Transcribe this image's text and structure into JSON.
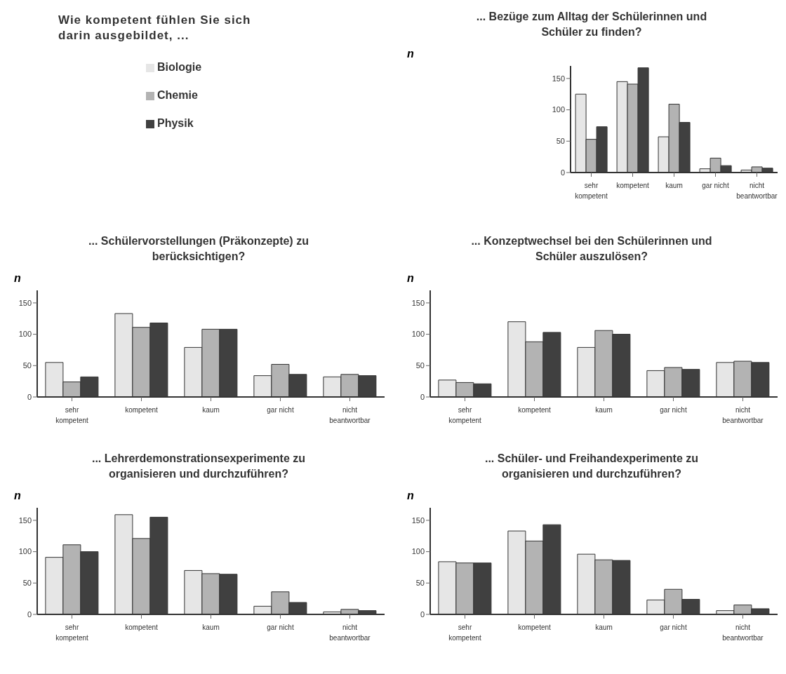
{
  "chart_data": [
    {
      "type": "other",
      "title": "Wie kompetent fühlen Sie sich darin ausgebildet, ..."
    },
    {
      "type": "bar",
      "title": "... Bezüge zum Alltag der Schülerinnen und Schüler zu finden?",
      "ylabel": "n",
      "categories": [
        "sehr kompetent",
        "kompetent",
        "kaum",
        "gar nicht",
        "nicht beantwortbar"
      ],
      "ylim": [
        0,
        170
      ],
      "yticks": [
        0,
        50,
        100,
        150
      ],
      "legend": "left",
      "series": [
        {
          "name": "Biologie",
          "color": "#e6e6e6",
          "values": [
            125,
            145,
            57,
            6,
            4
          ]
        },
        {
          "name": "Chemie",
          "color": "#b3b3b3",
          "values": [
            53,
            141,
            109,
            23,
            9
          ]
        },
        {
          "name": "Physik",
          "color": "#404040",
          "values": [
            73,
            167,
            80,
            11,
            7
          ]
        }
      ]
    },
    {
      "type": "bar",
      "title": "... Schülervorstellungen (Präkonzepte) zu berücksichtigen?",
      "ylabel": "n",
      "categories": [
        "sehr kompetent",
        "kompetent",
        "kaum",
        "gar nicht",
        "nicht beantwortbar"
      ],
      "ylim": [
        0,
        170
      ],
      "yticks": [
        0,
        50,
        100,
        150
      ],
      "series": [
        {
          "color": "#e6e6e6",
          "values": [
            55,
            133,
            79,
            34,
            32
          ]
        },
        {
          "color": "#b3b3b3",
          "values": [
            24,
            111,
            108,
            52,
            36
          ]
        },
        {
          "color": "#404040",
          "values": [
            32,
            118,
            108,
            36,
            34
          ]
        }
      ]
    },
    {
      "type": "bar",
      "title": "... Konzeptwechsel bei den Schülerinnen und Schüler auszulösen?",
      "ylabel": "n",
      "categories": [
        "sehr kompetent",
        "kompetent",
        "kaum",
        "gar nicht",
        "nicht beantwortbar"
      ],
      "ylim": [
        0,
        170
      ],
      "yticks": [
        0,
        50,
        100,
        150
      ],
      "series": [
        {
          "color": "#e6e6e6",
          "values": [
            27,
            120,
            79,
            42,
            55
          ]
        },
        {
          "color": "#b3b3b3",
          "values": [
            23,
            88,
            106,
            47,
            57
          ]
        },
        {
          "color": "#404040",
          "values": [
            21,
            103,
            100,
            44,
            55
          ]
        }
      ]
    },
    {
      "type": "bar",
      "title": "... Lehrerdemonstrationsexperimente zu organisieren und durchzuführen?",
      "ylabel": "n",
      "categories": [
        "sehr kompetent",
        "kompetent",
        "kaum",
        "gar nicht",
        "nicht beantwortbar"
      ],
      "ylim": [
        0,
        170
      ],
      "yticks": [
        0,
        50,
        100,
        150
      ],
      "series": [
        {
          "color": "#e6e6e6",
          "values": [
            91,
            159,
            70,
            13,
            4
          ]
        },
        {
          "color": "#b3b3b3",
          "values": [
            111,
            121,
            65,
            36,
            8
          ]
        },
        {
          "color": "#404040",
          "values": [
            100,
            155,
            64,
            19,
            6
          ]
        }
      ]
    },
    {
      "type": "bar",
      "title": "... Schüler- und Freihandexperimente zu organisieren und durchzuführen?",
      "ylabel": "n",
      "categories": [
        "sehr kompetent",
        "kompetent",
        "kaum",
        "gar nicht",
        "nicht beantwortbar"
      ],
      "ylim": [
        0,
        170
      ],
      "yticks": [
        0,
        50,
        100,
        150
      ],
      "series": [
        {
          "color": "#e6e6e6",
          "values": [
            84,
            133,
            96,
            23,
            6
          ]
        },
        {
          "color": "#b3b3b3",
          "values": [
            82,
            117,
            87,
            40,
            15
          ]
        },
        {
          "color": "#404040",
          "values": [
            82,
            143,
            86,
            24,
            9
          ]
        }
      ]
    }
  ]
}
